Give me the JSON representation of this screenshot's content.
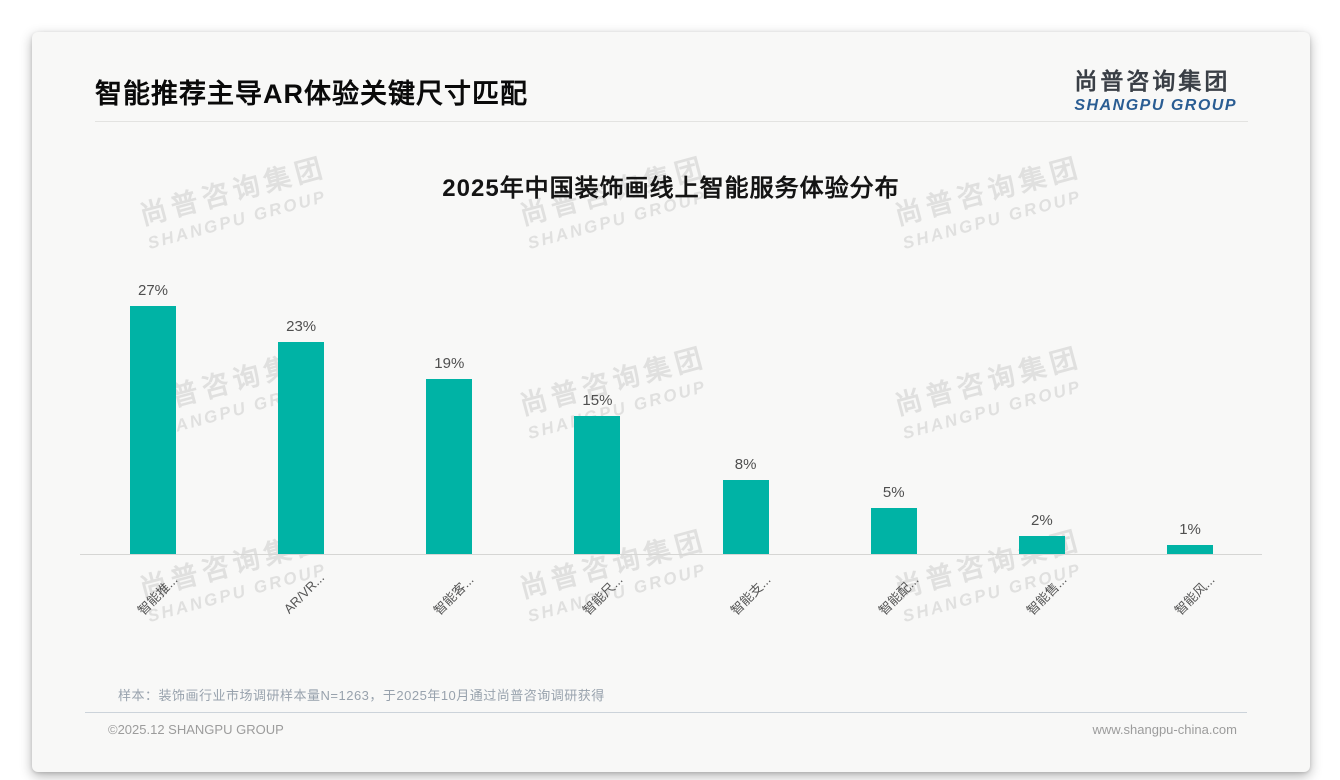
{
  "header": {
    "title": "智能推荐主导AR体验关键尺寸匹配"
  },
  "logo": {
    "chinese": "尚普咨询集团",
    "english": "SHANGPU GROUP"
  },
  "watermark": {
    "line1": "尚普咨询集团",
    "line2": "SHANGPU GROUP"
  },
  "chart_data": {
    "type": "bar",
    "title": "2025年中国装饰画线上智能服务体验分布",
    "categories": [
      "智能推...",
      "AR/VR...",
      "智能客...",
      "智能尺...",
      "智能支...",
      "智能配...",
      "智能售...",
      "智能风..."
    ],
    "values": [
      27,
      23,
      19,
      15,
      8,
      5,
      2,
      1
    ],
    "value_labels": [
      "27%",
      "23%",
      "19%",
      "15%",
      "8%",
      "5%",
      "2%",
      "1%"
    ],
    "bar_color": "#00b3a5",
    "xlabel": "",
    "ylabel": "",
    "ylim": [
      0,
      30
    ],
    "grid": false,
    "legend": false,
    "label_position": "above-bars",
    "x_label_rotation_deg": 45
  },
  "sample_note": "样本：装饰画行业市场调研样本量N=1263，于2025年10月通过尚普咨询调研获得",
  "footer": {
    "copyright": "©2025.12 SHANGPU GROUP",
    "website": "www.shangpu-china.com"
  }
}
